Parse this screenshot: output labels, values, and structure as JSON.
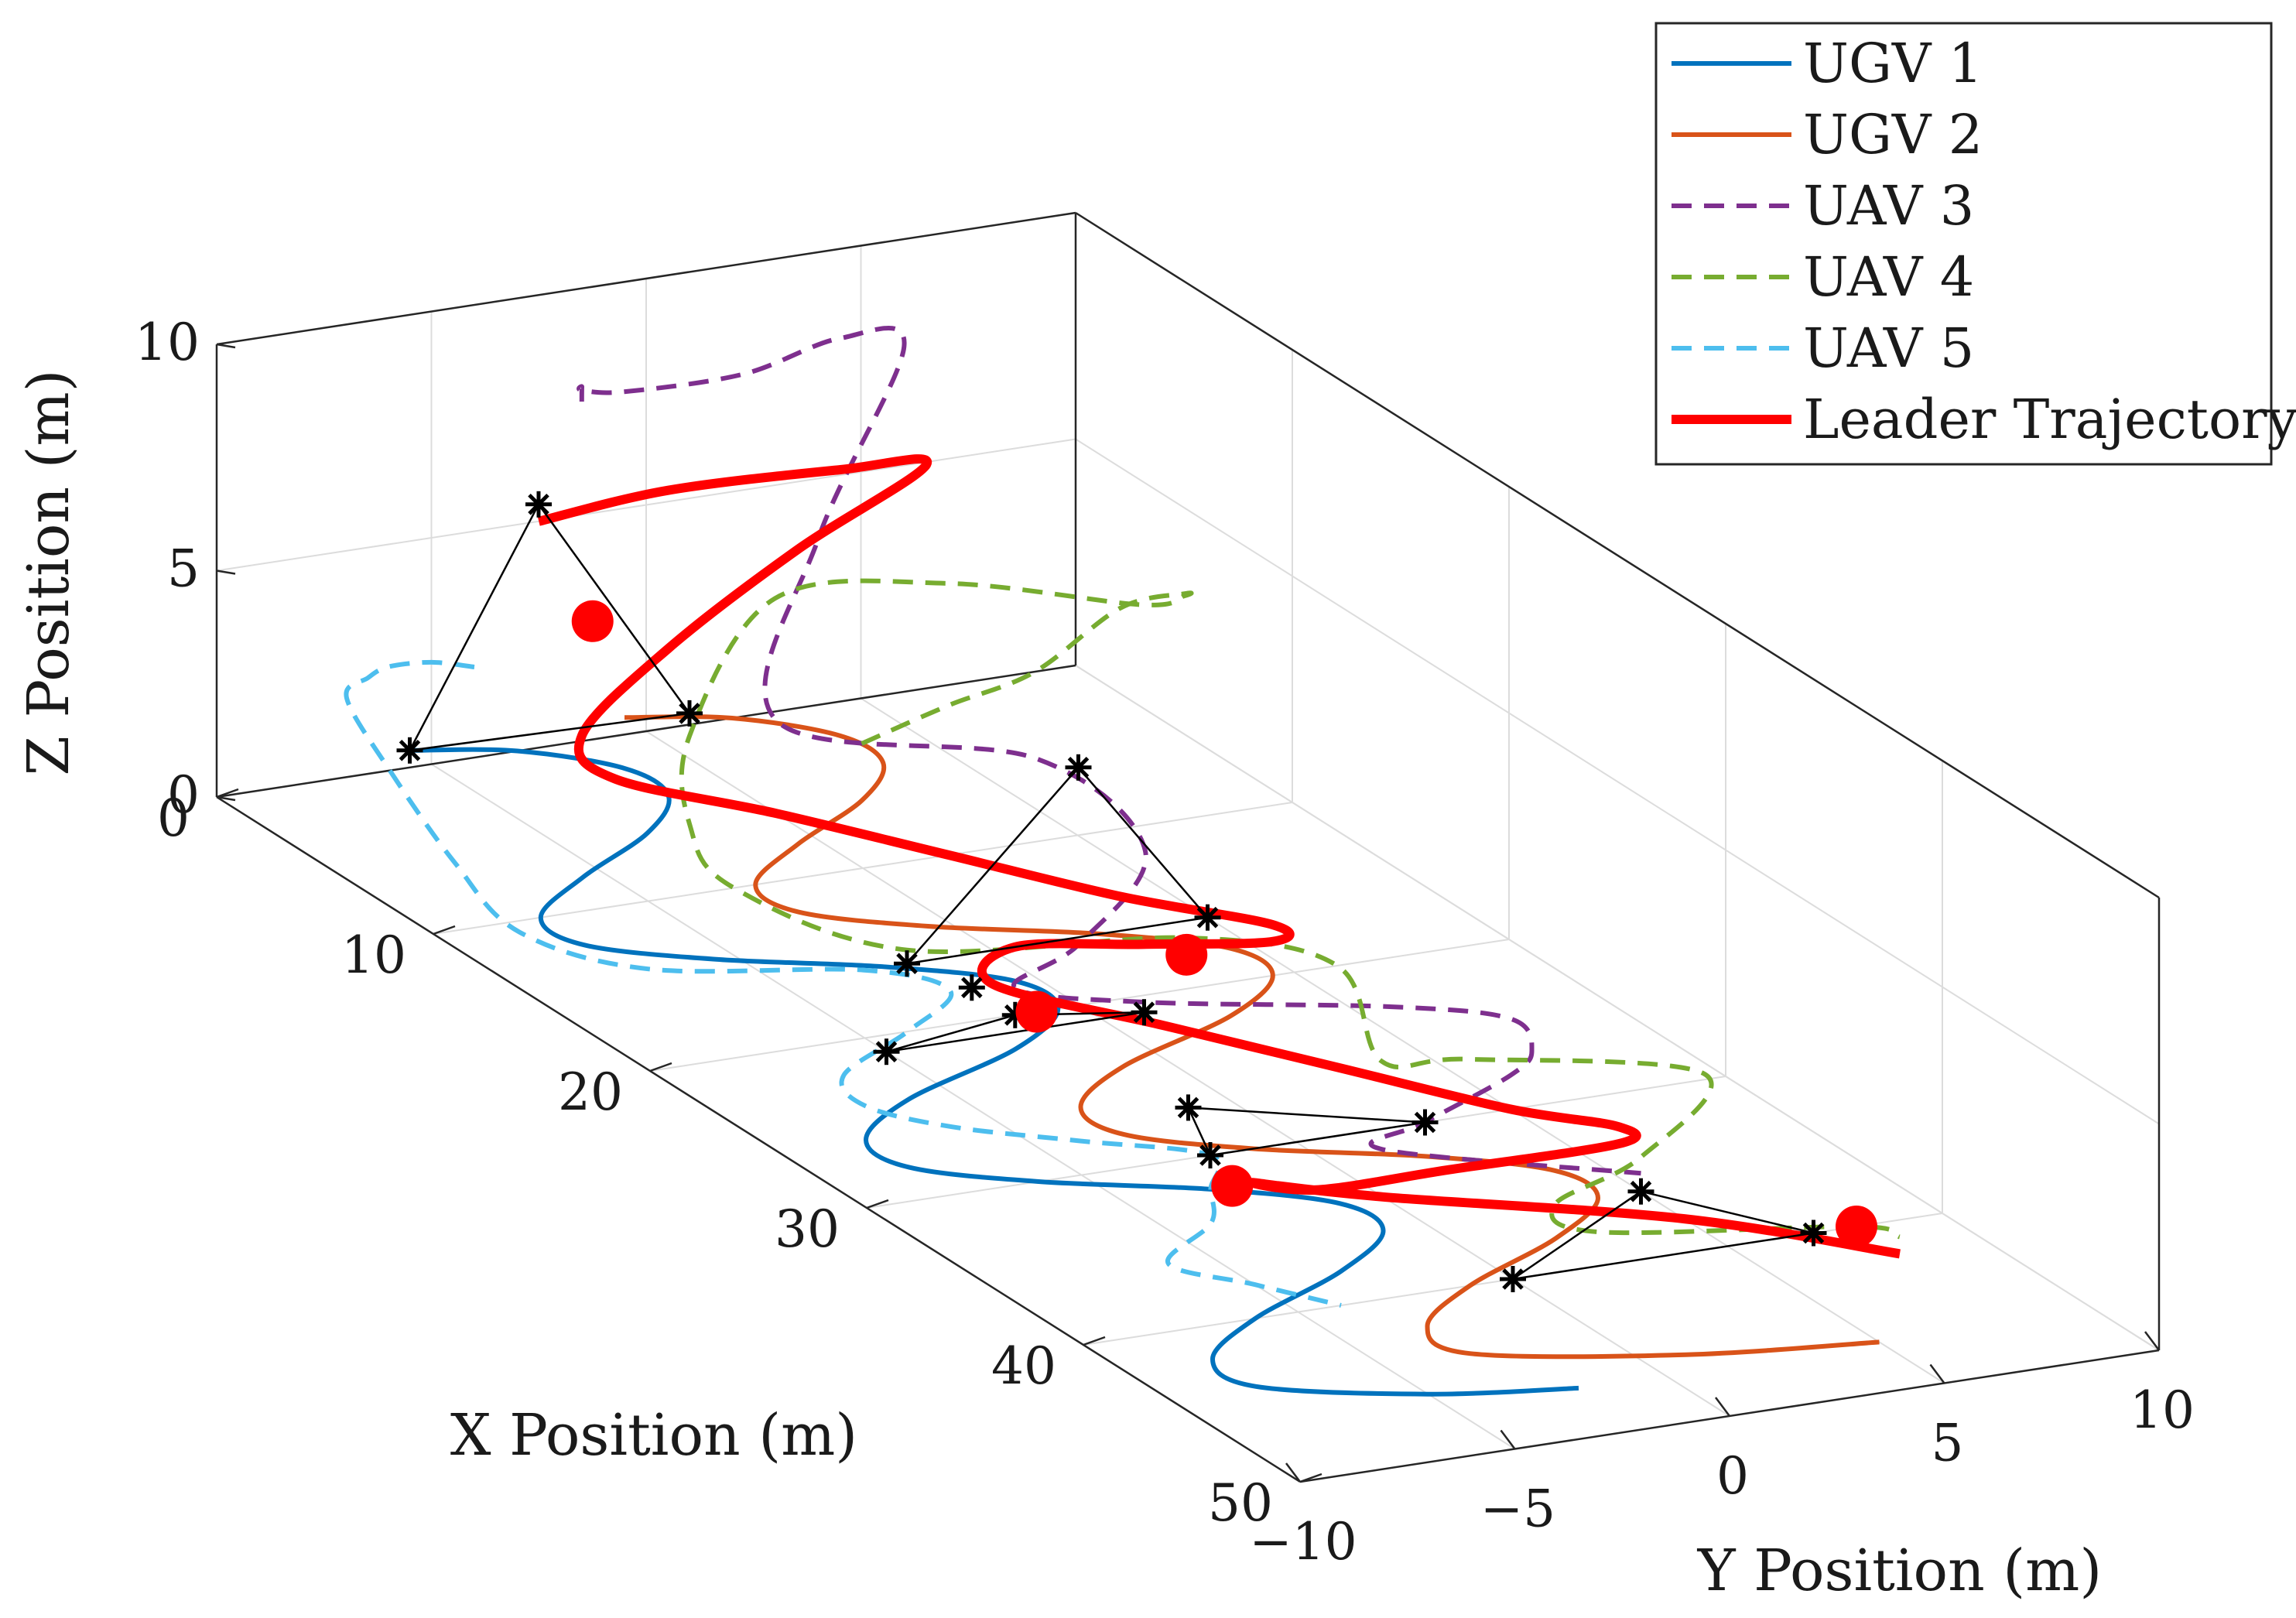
{
  "chart_data": {
    "type": "line3d",
    "title": "",
    "xlabel": "X Position (m)",
    "ylabel": "Y Position (m)",
    "zlabel": "Z Position (m)",
    "xlim": [
      0,
      50
    ],
    "ylim": [
      -10,
      10
    ],
    "zlim": [
      0,
      10
    ],
    "grid": true,
    "legend_position": "top-right",
    "x_ticks": [
      0,
      10,
      20,
      30,
      40,
      50
    ],
    "y_ticks": [
      -10,
      -5,
      0,
      5,
      10
    ],
    "z_ticks": [
      0,
      5,
      10
    ],
    "x_tick_labels": [
      "0",
      "10",
      "20",
      "30",
      "40",
      "50"
    ],
    "y_tick_labels": [
      "−10",
      "−5",
      "0",
      "5",
      "10"
    ],
    "z_tick_labels": [
      "0",
      "5",
      "10"
    ],
    "series": [
      {
        "name": "UGV 1",
        "color": "#0072BD",
        "style": "solid",
        "points": [
          [
            -1,
            -5,
            0
          ],
          [
            0,
            -3,
            0
          ],
          [
            2,
            -1.5,
            0
          ],
          [
            4,
            -1.5,
            0
          ],
          [
            6,
            -3,
            0
          ],
          [
            8,
            -5.5,
            0
          ],
          [
            10,
            -7.5,
            0
          ],
          [
            12,
            -7.5,
            0
          ],
          [
            14,
            -5.5,
            0
          ],
          [
            16,
            -2.5,
            0
          ],
          [
            18,
            -0.5,
            0
          ],
          [
            20,
            -0.5,
            0
          ],
          [
            22,
            -2.5,
            0
          ],
          [
            24,
            -6,
            0
          ],
          [
            26,
            -8,
            0
          ],
          [
            28,
            -8,
            0
          ],
          [
            30,
            -6,
            0
          ],
          [
            32,
            -3,
            0
          ],
          [
            34,
            -1,
            0
          ],
          [
            36,
            -1,
            0
          ],
          [
            38,
            -3,
            0
          ],
          [
            40,
            -6,
            0
          ],
          [
            42,
            -8,
            0
          ],
          [
            44,
            -8,
            0
          ],
          [
            46,
            -5,
            0
          ],
          [
            47,
            -2,
            0
          ]
        ]
      },
      {
        "name": "UGV 2",
        "color": "#D95319",
        "style": "solid",
        "points": [
          [
            -1,
            0,
            0
          ],
          [
            0,
            2,
            0
          ],
          [
            2,
            3.5,
            0
          ],
          [
            4,
            3.5,
            0
          ],
          [
            6,
            2,
            0
          ],
          [
            8,
            -0.5,
            0
          ],
          [
            10,
            -2.5,
            0
          ],
          [
            12,
            -2.5,
            0
          ],
          [
            14,
            -0.5,
            0
          ],
          [
            16,
            2.5,
            0
          ],
          [
            18,
            4.5,
            0
          ],
          [
            20,
            4.5,
            0
          ],
          [
            22,
            2.5,
            0
          ],
          [
            24,
            -1,
            0
          ],
          [
            26,
            -3,
            0
          ],
          [
            28,
            -3,
            0
          ],
          [
            30,
            -1,
            0
          ],
          [
            32,
            2,
            0
          ],
          [
            34,
            4,
            0
          ],
          [
            36,
            4,
            0
          ],
          [
            38,
            2,
            0
          ],
          [
            40,
            -1,
            0
          ],
          [
            42,
            -3,
            0
          ],
          [
            44,
            -3,
            0
          ],
          [
            46,
            1,
            0
          ],
          [
            47,
            5,
            0
          ]
        ]
      },
      {
        "name": "UAV 3",
        "color": "#7E2F8E",
        "style": "dashed",
        "points": [
          [
            0,
            -1.5,
            7.5
          ],
          [
            1,
            -2,
            8.2
          ],
          [
            2,
            -2.5,
            8.5
          ],
          [
            3,
            -2,
            8.7
          ],
          [
            2.5,
            1,
            8.5
          ],
          [
            1,
            4,
            8.4
          ],
          [
            1,
            5.5,
            8
          ],
          [
            4,
            2,
            5.2
          ],
          [
            8,
            -1,
            2.8
          ],
          [
            12,
            3,
            2.6
          ],
          [
            15.5,
            3.8,
            1.5
          ],
          [
            18,
            1,
            0.6
          ],
          [
            20,
            -1.5,
            0.6
          ],
          [
            22,
            0.5,
            0.6
          ],
          [
            24.5,
            5,
            0.6
          ],
          [
            26,
            7,
            0.5
          ],
          [
            27,
            7,
            0.1
          ],
          [
            28,
            6,
            0
          ],
          [
            30,
            3,
            0
          ],
          [
            32,
            1,
            0.3
          ],
          [
            36,
            5,
            0.4
          ]
        ]
      },
      {
        "name": "UAV 4",
        "color": "#77AC30",
        "style": "dashed",
        "points": [
          [
            4,
            3,
            0.5
          ],
          [
            6,
            4,
            1.8
          ],
          [
            8,
            5,
            3
          ],
          [
            9,
            6.5,
            4.5
          ],
          [
            9,
            8,
            4.6
          ],
          [
            7,
            9,
            3.8
          ],
          [
            5,
            9,
            3
          ],
          [
            2,
            6,
            3
          ],
          [
            0,
            3,
            2.5
          ],
          [
            2,
            0,
            0.5
          ],
          [
            6,
            -2,
            0
          ],
          [
            10,
            -3,
            0
          ],
          [
            16,
            -2,
            0.3
          ],
          [
            17,
            4,
            0
          ],
          [
            20,
            6,
            0
          ],
          [
            26,
            4,
            0
          ],
          [
            28,
            5,
            0.5
          ],
          [
            31,
            9,
            0.5
          ],
          [
            34,
            6,
            0
          ],
          [
            36,
            3,
            0
          ],
          [
            38,
            3,
            0
          ],
          [
            40,
            8,
            0
          ],
          [
            41,
            8.5,
            0
          ]
        ]
      },
      {
        "name": "UAV 5",
        "color": "#4DBEEE",
        "style": "dashed",
        "points": [
          [
            0,
            -4,
            2
          ],
          [
            2,
            -6,
            3
          ],
          [
            4,
            -8,
            3.8
          ],
          [
            5,
            -9,
            4
          ],
          [
            6,
            -10,
            4
          ],
          [
            8,
            -10,
            3
          ],
          [
            10,
            -9.5,
            1.5
          ],
          [
            12,
            -9,
            0.5
          ],
          [
            14,
            -7,
            0
          ],
          [
            16,
            -3,
            0
          ],
          [
            18,
            -2,
            0
          ],
          [
            20,
            -4,
            0
          ],
          [
            22,
            -6.5,
            0
          ],
          [
            24,
            -7,
            0
          ],
          [
            26,
            -6,
            0
          ],
          [
            28,
            -4,
            0
          ],
          [
            30,
            -2,
            0
          ],
          [
            32,
            -3,
            0
          ],
          [
            34,
            -4,
            0
          ],
          [
            36,
            -6,
            0
          ],
          [
            38,
            -5,
            0
          ],
          [
            40,
            -4,
            0
          ]
        ]
      },
      {
        "name": "Leader Trajectory",
        "color": "#FF0000",
        "style": "solid-thick",
        "points": [
          [
            0,
            -2.5,
            5
          ],
          [
            2,
            -0.5,
            6
          ],
          [
            5,
            2,
            7
          ],
          [
            6,
            3.5,
            7.2
          ],
          [
            4,
            1.5,
            5
          ],
          [
            2,
            -0.5,
            2.5
          ],
          [
            1,
            -2,
            0.5
          ],
          [
            2.5,
            -2,
            0
          ],
          [
            6,
            0,
            0
          ],
          [
            10,
            2,
            0
          ],
          [
            14,
            4,
            0
          ],
          [
            17,
            6,
            0
          ],
          [
            18,
            5.5,
            0
          ],
          [
            17,
            3,
            0
          ],
          [
            16,
            0.5,
            0
          ],
          [
            18,
            -1,
            0
          ],
          [
            22,
            1,
            0
          ],
          [
            26,
            3,
            0
          ],
          [
            30,
            5,
            0
          ],
          [
            32,
            6.5,
            0
          ],
          [
            33,
            6,
            0
          ],
          [
            33,
            2,
            0
          ],
          [
            33,
            -1,
            0
          ],
          [
            32,
            -2,
            0
          ],
          [
            34,
            0,
            0
          ],
          [
            38,
            5,
            0
          ],
          [
            42,
            8,
            0
          ]
        ]
      }
    ],
    "leader_markers": [
      [
        0.5,
        -1.5,
        2.8
      ],
      [
        18,
        3.5,
        0
      ],
      [
        20,
        -1,
        0
      ],
      [
        32,
        -2.5,
        0
      ],
      [
        40,
        8,
        0
      ]
    ],
    "formations": [
      {
        "apex": [
          -1,
          -2,
          5
        ],
        "base": [
          [
            -1,
            -5,
            0
          ],
          [
            2,
            0,
            1
          ]
        ]
      },
      {
        "apex": [
          14,
          3,
          3
        ],
        "base": [
          [
            16,
            -2,
            0
          ],
          [
            16,
            5,
            0
          ]
        ]
      },
      {
        "apex": [
          20,
          -1.5,
          0
        ],
        "base": [
          [
            21,
            -5,
            0
          ],
          [
            21,
            1,
            0
          ]
        ]
      },
      {
        "apex": [
          27,
          -1,
          0
        ],
        "base": [
          [
            30,
            -2,
            0
          ],
          [
            30,
            3,
            0
          ]
        ]
      },
      {
        "apex": [
          36,
          5,
          0
        ],
        "base": [
          [
            40,
            0,
            0
          ],
          [
            40,
            7,
            0
          ]
        ]
      }
    ],
    "extra_markers": [
      [
        18,
        -1.5,
        0
      ]
    ]
  }
}
